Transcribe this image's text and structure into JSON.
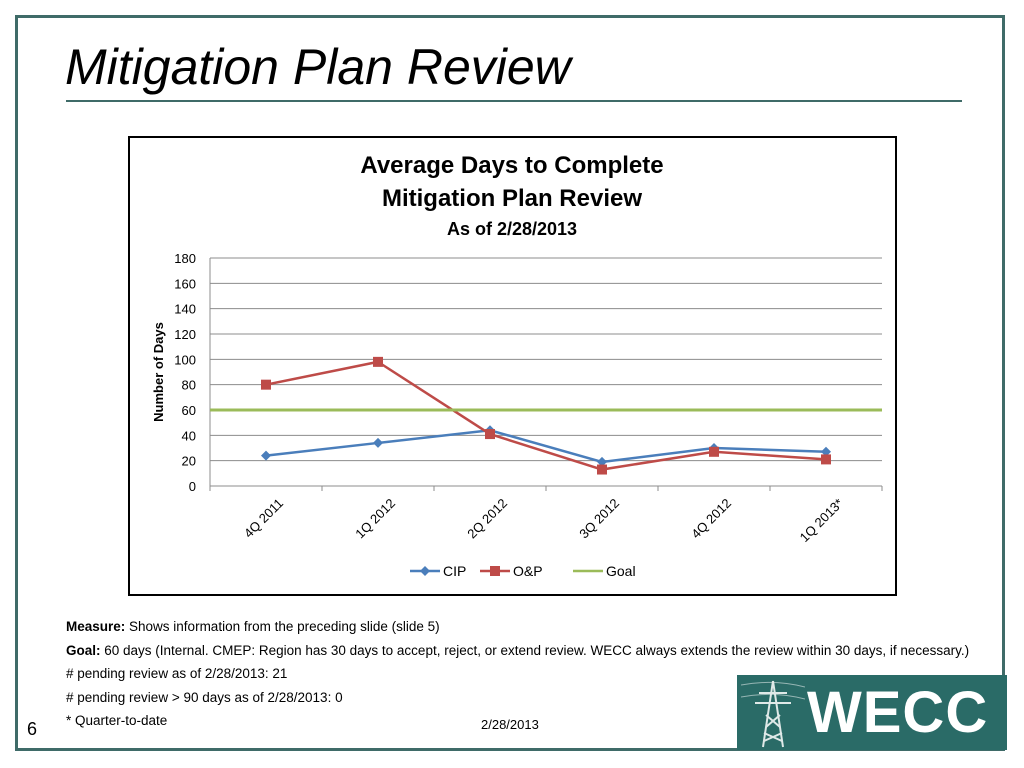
{
  "slide": {
    "title": "Mitigation Plan Review",
    "number": "6",
    "date": "2/28/2013",
    "logo_text": "WECC"
  },
  "notes": {
    "measure_label": "Measure:",
    "measure_text": " Shows information from the preceding slide (slide 5)",
    "goal_label": "Goal:",
    "goal_text": " 60 days (Internal. CMEP: Region has 30 days to accept, reject, or extend review.  WECC always extends the review within 30 days, if necessary.)",
    "pending": "# pending review as of 2/28/2013: 21",
    "pending_90": "# pending review > 90 days as of 2/28/2013: 0",
    "footnote": "* Quarter-to-date"
  },
  "chart_data": {
    "type": "line",
    "title_line1": "Average Days to Complete",
    "title_line2": "Mitigation Plan Review",
    "subtitle": "As of 2/28/2013",
    "xlabel": "",
    "ylabel": "Number of Days",
    "ylim": [
      0,
      180
    ],
    "yticks": [
      0,
      20,
      40,
      60,
      80,
      100,
      120,
      140,
      160,
      180
    ],
    "grid": true,
    "legend_position": "bottom",
    "categories": [
      "4Q 2011",
      "1Q 2012",
      "2Q 2012",
      "3Q 2012",
      "4Q 2012",
      "1Q 2013*"
    ],
    "series": [
      {
        "name": "CIP",
        "values": [
          24,
          34,
          44,
          19,
          30,
          27
        ],
        "color": "#4a7ebb",
        "marker": "diamond"
      },
      {
        "name": "O&P",
        "values": [
          80,
          98,
          41,
          13,
          27,
          21
        ],
        "color": "#be4b48",
        "marker": "square"
      },
      {
        "name": "Goal",
        "values": [
          60,
          60,
          60,
          60,
          60,
          60
        ],
        "color": "#9bbb59",
        "marker": "none"
      }
    ]
  }
}
